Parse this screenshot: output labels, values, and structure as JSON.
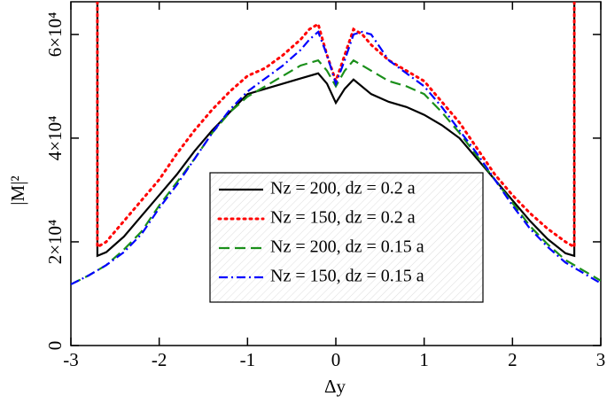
{
  "chart_data": {
    "type": "line",
    "xlabel": "Δy",
    "ylabel": "|M|²",
    "xlim": [
      -3,
      3
    ],
    "ylim": [
      0,
      66300
    ],
    "xticks": [
      -3,
      -2,
      -1,
      0,
      1,
      2,
      3
    ],
    "yticks": [
      0,
      {
        "value": 20000,
        "label": "2×10⁴"
      },
      {
        "value": 40000,
        "label": "4×10⁴"
      },
      {
        "value": 60000,
        "label": "6×10⁴"
      }
    ],
    "series": [
      {
        "name": "Nz = 200, dz = 0.2 a",
        "color": "#000000",
        "dash": "solid",
        "x": [
          -2.7,
          -2.7,
          -2.6,
          -2.4,
          -2.2,
          -2.0,
          -1.8,
          -1.6,
          -1.4,
          -1.2,
          -1.0,
          -0.8,
          -0.6,
          -0.4,
          -0.2,
          -0.1,
          0,
          0.1,
          0.2,
          0.4,
          0.6,
          0.8,
          1.0,
          1.2,
          1.4,
          1.6,
          1.8,
          2.0,
          2.2,
          2.4,
          2.6,
          2.7,
          2.7
        ],
        "values": [
          66300,
          17300,
          18000,
          21000,
          25000,
          29000,
          33000,
          37500,
          41500,
          45000,
          48500,
          49500,
          50500,
          51500,
          52500,
          50500,
          46800,
          49500,
          51300,
          48500,
          47000,
          46000,
          44500,
          42500,
          40000,
          36000,
          32000,
          28000,
          24000,
          20500,
          17800,
          17300,
          66300
        ]
      },
      {
        "name": "Nz = 150, dz = 0.2 a",
        "color": "#ff0000",
        "dash": "dot",
        "x": [
          -2.7,
          -2.7,
          -2.6,
          -2.4,
          -2.2,
          -2.0,
          -1.8,
          -1.6,
          -1.4,
          -1.2,
          -1.0,
          -0.8,
          -0.6,
          -0.4,
          -0.3,
          -0.2,
          -0.1,
          0,
          0.1,
          0.2,
          0.3,
          0.4,
          0.6,
          0.8,
          1.0,
          1.2,
          1.4,
          1.6,
          1.8,
          2.0,
          2.2,
          2.4,
          2.6,
          2.7,
          2.7
        ],
        "values": [
          66300,
          19000,
          20000,
          24000,
          28000,
          32000,
          37000,
          41500,
          45500,
          49000,
          52000,
          53500,
          56000,
          59000,
          61000,
          62000,
          56000,
          51000,
          56000,
          61000,
          60000,
          58000,
          55000,
          53000,
          51000,
          47000,
          43000,
          38000,
          33000,
          29000,
          25500,
          22500,
          20000,
          19000,
          66300
        ]
      },
      {
        "name": "Nz = 200, dz = 0.15 a",
        "color": "#1a8f1a",
        "dash": "dash",
        "x": [
          -3.0,
          -2.8,
          -2.6,
          -2.4,
          -2.2,
          -2.0,
          -1.8,
          -1.6,
          -1.4,
          -1.2,
          -1.0,
          -0.8,
          -0.6,
          -0.4,
          -0.2,
          -0.1,
          0,
          0.1,
          0.2,
          0.4,
          0.6,
          0.8,
          1.0,
          1.2,
          1.4,
          1.6,
          1.8,
          2.0,
          2.2,
          2.4,
          2.6,
          2.8,
          3.0
        ],
        "values": [
          11800,
          13500,
          15500,
          18500,
          22000,
          27000,
          31500,
          36000,
          41000,
          45000,
          48000,
          50000,
          52000,
          54000,
          55000,
          53000,
          50000,
          53000,
          55000,
          53000,
          51000,
          50000,
          48500,
          45000,
          41000,
          36500,
          32000,
          27500,
          23000,
          19500,
          16500,
          14500,
          12500
        ]
      },
      {
        "name": "Nz = 150, dz = 0.15 a",
        "color": "#0000ff",
        "dash": "dashdot",
        "x": [
          -3.0,
          -2.8,
          -2.6,
          -2.4,
          -2.2,
          -2.0,
          -1.8,
          -1.6,
          -1.4,
          -1.2,
          -1.0,
          -0.8,
          -0.6,
          -0.4,
          -0.3,
          -0.2,
          -0.1,
          0,
          0.1,
          0.2,
          0.3,
          0.4,
          0.6,
          0.8,
          1.0,
          1.2,
          1.4,
          1.6,
          1.8,
          2.0,
          2.2,
          2.4,
          2.6,
          2.8,
          3.0
        ],
        "values": [
          11800,
          13500,
          15500,
          18000,
          21500,
          26500,
          31000,
          36000,
          41000,
          45500,
          49000,
          51500,
          54000,
          57000,
          59000,
          60500,
          56000,
          50500,
          55000,
          60000,
          60500,
          60000,
          55000,
          52500,
          50000,
          46000,
          41500,
          37000,
          32000,
          27000,
          22500,
          19000,
          16000,
          14000,
          12000
        ]
      }
    ]
  }
}
